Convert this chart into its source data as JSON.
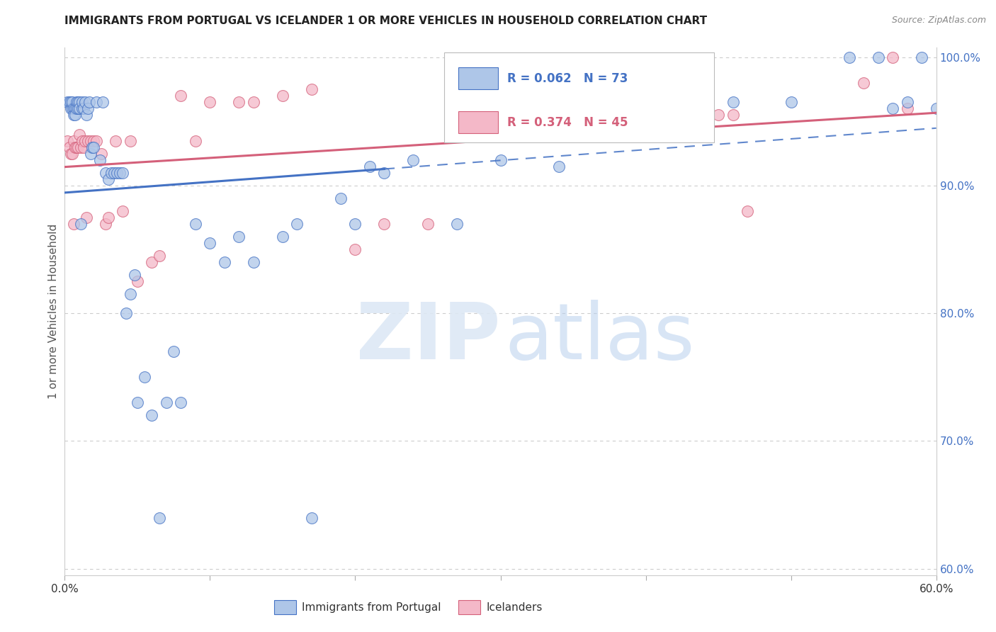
{
  "title": "IMMIGRANTS FROM PORTUGAL VS ICELANDER 1 OR MORE VEHICLES IN HOUSEHOLD CORRELATION CHART",
  "source": "Source: ZipAtlas.com",
  "ylabel": "1 or more Vehicles in Household",
  "legend_label1": "Immigrants from Portugal",
  "legend_label2": "Icelanders",
  "R1": 0.062,
  "N1": 73,
  "R2": 0.374,
  "N2": 45,
  "color1": "#aec6e8",
  "color2": "#f4b8c8",
  "line_color1": "#4472c4",
  "line_color2": "#d4607a",
  "x_min": 0.0,
  "x_max": 0.6,
  "y_min": 0.595,
  "y_max": 1.008,
  "right_yticks": [
    1.0,
    0.9,
    0.8,
    0.7,
    0.6
  ],
  "right_yticklabels": [
    "100.0%",
    "90.0%",
    "80.0%",
    "70.0%",
    "60.0%"
  ],
  "blue_x": [
    0.002,
    0.003,
    0.004,
    0.004,
    0.005,
    0.005,
    0.006,
    0.006,
    0.007,
    0.007,
    0.008,
    0.008,
    0.009,
    0.009,
    0.01,
    0.01,
    0.011,
    0.012,
    0.012,
    0.013,
    0.014,
    0.015,
    0.016,
    0.017,
    0.018,
    0.019,
    0.02,
    0.022,
    0.024,
    0.026,
    0.028,
    0.03,
    0.032,
    0.034,
    0.036,
    0.038,
    0.04,
    0.042,
    0.045,
    0.048,
    0.05,
    0.055,
    0.06,
    0.065,
    0.07,
    0.075,
    0.08,
    0.09,
    0.1,
    0.11,
    0.12,
    0.13,
    0.15,
    0.16,
    0.17,
    0.19,
    0.2,
    0.21,
    0.22,
    0.24,
    0.27,
    0.3,
    0.34,
    0.38,
    0.42,
    0.46,
    0.5,
    0.54,
    0.56,
    0.57,
    0.58,
    0.59,
    0.6
  ],
  "blue_y": [
    0.965,
    0.965,
    0.96,
    0.965,
    0.96,
    0.965,
    0.96,
    0.955,
    0.96,
    0.955,
    0.965,
    0.96,
    0.96,
    0.965,
    0.965,
    0.96,
    0.87,
    0.96,
    0.965,
    0.96,
    0.965,
    0.955,
    0.96,
    0.965,
    0.925,
    0.93,
    0.93,
    0.965,
    0.92,
    0.965,
    0.91,
    0.905,
    0.91,
    0.91,
    0.91,
    0.91,
    0.91,
    0.8,
    0.815,
    0.83,
    0.73,
    0.75,
    0.72,
    0.64,
    0.73,
    0.77,
    0.73,
    0.87,
    0.855,
    0.84,
    0.86,
    0.84,
    0.86,
    0.87,
    0.64,
    0.89,
    0.87,
    0.915,
    0.91,
    0.92,
    0.87,
    0.92,
    0.915,
    0.965,
    0.95,
    0.965,
    0.965,
    1.0,
    1.0,
    0.96,
    0.965,
    1.0,
    0.96
  ],
  "pink_x": [
    0.002,
    0.003,
    0.004,
    0.005,
    0.006,
    0.006,
    0.007,
    0.008,
    0.009,
    0.01,
    0.011,
    0.012,
    0.013,
    0.014,
    0.015,
    0.016,
    0.018,
    0.02,
    0.022,
    0.025,
    0.028,
    0.03,
    0.035,
    0.04,
    0.045,
    0.05,
    0.06,
    0.065,
    0.08,
    0.09,
    0.1,
    0.12,
    0.13,
    0.15,
    0.17,
    0.2,
    0.22,
    0.25,
    0.42,
    0.45,
    0.46,
    0.47,
    0.55,
    0.57,
    0.58
  ],
  "pink_y": [
    0.935,
    0.93,
    0.925,
    0.925,
    0.87,
    0.935,
    0.93,
    0.93,
    0.93,
    0.94,
    0.93,
    0.935,
    0.93,
    0.935,
    0.875,
    0.935,
    0.935,
    0.935,
    0.935,
    0.925,
    0.87,
    0.875,
    0.935,
    0.88,
    0.935,
    0.825,
    0.84,
    0.845,
    0.97,
    0.935,
    0.965,
    0.965,
    0.965,
    0.97,
    0.975,
    0.85,
    0.87,
    0.87,
    0.955,
    0.955,
    0.955,
    0.88,
    0.98,
    1.0,
    0.96
  ]
}
